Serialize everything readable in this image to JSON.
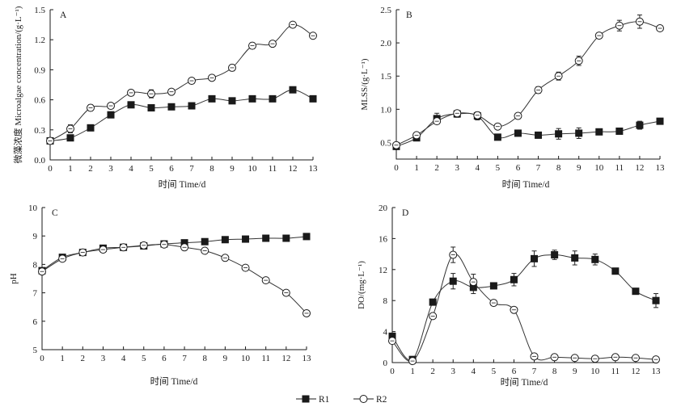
{
  "legend": {
    "r1": "R1",
    "r2": "R2"
  },
  "chart_data": [
    {
      "type": "line",
      "panel": "A",
      "xlabel": "时间 Time/d",
      "ylabel": "微藻浓度 Microalgae concentration/(g·L⁻¹)",
      "xlim": [
        0,
        13
      ],
      "ylim": [
        0,
        1.5
      ],
      "xticks": [
        0,
        1,
        2,
        3,
        4,
        5,
        6,
        7,
        8,
        9,
        10,
        11,
        12,
        13
      ],
      "yticks": [
        0,
        0.3,
        0.6,
        0.9,
        1.2,
        1.5
      ],
      "grid": false,
      "series": [
        {
          "name": "R1",
          "marker": "filled-square",
          "x": [
            0,
            1,
            2,
            3,
            4,
            5,
            6,
            7,
            8,
            9,
            10,
            11,
            12,
            13
          ],
          "y": [
            0.19,
            0.22,
            0.32,
            0.45,
            0.55,
            0.52,
            0.53,
            0.54,
            0.61,
            0.59,
            0.61,
            0.61,
            0.7,
            0.61
          ],
          "err": [
            0.01,
            0.01,
            0.01,
            0.01,
            0.01,
            0.02,
            0.01,
            0.01,
            0.01,
            0.01,
            0.01,
            0.01,
            0.01,
            0.01
          ]
        },
        {
          "name": "R2",
          "marker": "open-circle",
          "x": [
            0,
            1,
            2,
            3,
            4,
            5,
            6,
            7,
            8,
            9,
            10,
            11,
            12,
            13
          ],
          "y": [
            0.19,
            0.31,
            0.52,
            0.54,
            0.67,
            0.66,
            0.68,
            0.79,
            0.82,
            0.92,
            1.14,
            1.16,
            1.35,
            1.24
          ],
          "err": [
            0.01,
            0.04,
            0.03,
            0.02,
            0.02,
            0.04,
            0.02,
            0.02,
            0.02,
            0.03,
            0.03,
            0.02,
            0.02,
            0.02
          ]
        }
      ]
    },
    {
      "type": "line",
      "panel": "B",
      "xlabel": "时间 Time/d",
      "ylabel": "MLSS/(g·L⁻¹)",
      "xlim": [
        0,
        13
      ],
      "ylim": [
        0.25,
        2.5
      ],
      "xticks": [
        0,
        1,
        2,
        3,
        4,
        5,
        6,
        7,
        8,
        9,
        10,
        11,
        12,
        13
      ],
      "yticks": [
        0.5,
        1.0,
        1.5,
        2.0,
        2.5
      ],
      "grid": false,
      "series": [
        {
          "name": "R1",
          "marker": "filled-square",
          "x": [
            0,
            1,
            2,
            3,
            4,
            5,
            6,
            7,
            8,
            9,
            10,
            11,
            12,
            13
          ],
          "y": [
            0.44,
            0.57,
            0.86,
            0.93,
            0.9,
            0.58,
            0.64,
            0.61,
            0.63,
            0.64,
            0.66,
            0.67,
            0.76,
            0.82
          ],
          "err": [
            0.02,
            0.03,
            0.08,
            0.05,
            0.06,
            0.03,
            0.04,
            0.04,
            0.08,
            0.08,
            0.03,
            0.02,
            0.06,
            0.03
          ]
        },
        {
          "name": "R2",
          "marker": "open-circle",
          "x": [
            0,
            1,
            2,
            3,
            4,
            5,
            6,
            7,
            8,
            9,
            10,
            11,
            12,
            13
          ],
          "y": [
            0.46,
            0.61,
            0.82,
            0.94,
            0.91,
            0.74,
            0.9,
            1.29,
            1.5,
            1.73,
            2.11,
            2.26,
            2.32,
            2.22
          ],
          "err": [
            0.02,
            0.03,
            0.04,
            0.03,
            0.03,
            0.03,
            0.03,
            0.05,
            0.06,
            0.07,
            0.03,
            0.08,
            0.1,
            0.03
          ]
        }
      ]
    },
    {
      "type": "line",
      "panel": "C",
      "xlabel": "时间 Time/d",
      "ylabel": "pH",
      "xlim": [
        0,
        13
      ],
      "ylim": [
        5,
        10
      ],
      "xticks": [
        0,
        1,
        2,
        3,
        4,
        5,
        6,
        7,
        8,
        9,
        10,
        11,
        12,
        13
      ],
      "yticks": [
        5,
        6,
        7,
        8,
        9,
        10
      ],
      "grid": false,
      "series": [
        {
          "name": "R1",
          "marker": "filled-square",
          "x": [
            0,
            1,
            2,
            3,
            4,
            5,
            6,
            7,
            8,
            9,
            10,
            11,
            12,
            13
          ],
          "y": [
            7.78,
            8.25,
            8.42,
            8.57,
            8.6,
            8.65,
            8.72,
            8.76,
            8.8,
            8.87,
            8.89,
            8.92,
            8.92,
            8.98
          ],
          "err": [
            0.03,
            0.03,
            0.03,
            0.03,
            0.02,
            0.02,
            0.02,
            0.02,
            0.02,
            0.02,
            0.02,
            0.02,
            0.02,
            0.03
          ]
        },
        {
          "name": "R2",
          "marker": "open-circle",
          "x": [
            0,
            1,
            2,
            3,
            4,
            5,
            6,
            7,
            8,
            9,
            10,
            11,
            12,
            13
          ],
          "y": [
            7.75,
            8.2,
            8.42,
            8.52,
            8.6,
            8.67,
            8.7,
            8.6,
            8.48,
            8.23,
            7.88,
            7.44,
            7.0,
            6.28
          ],
          "err": [
            0.03,
            0.03,
            0.03,
            0.03,
            0.02,
            0.02,
            0.02,
            0.02,
            0.02,
            0.03,
            0.03,
            0.03,
            0.03,
            0.03
          ]
        }
      ]
    },
    {
      "type": "line",
      "panel": "D",
      "xlabel": "时间 Time/d",
      "ylabel": "DO/(mg·L⁻¹)",
      "xlim": [
        0,
        13
      ],
      "ylim": [
        0,
        20
      ],
      "xticks": [
        0,
        1,
        2,
        3,
        4,
        5,
        6,
        7,
        8,
        9,
        10,
        11,
        12,
        13
      ],
      "yticks": [
        0,
        4,
        8,
        12,
        16,
        20
      ],
      "grid": false,
      "series": [
        {
          "name": "R1",
          "marker": "filled-square",
          "x": [
            0,
            1,
            2,
            3,
            4,
            5,
            6,
            7,
            8,
            9,
            10,
            11,
            12,
            13
          ],
          "y": [
            3.4,
            0.4,
            7.8,
            10.5,
            9.7,
            9.9,
            10.7,
            13.4,
            13.9,
            13.5,
            13.3,
            11.8,
            9.2,
            8.0
          ],
          "err": [
            0.3,
            0.2,
            0.3,
            1.0,
            0.8,
            0.3,
            0.8,
            1.0,
            0.6,
            0.9,
            0.7,
            0.3,
            0.3,
            0.9
          ]
        },
        {
          "name": "R2",
          "marker": "open-circle",
          "x": [
            0,
            1,
            2,
            3,
            4,
            5,
            6,
            7,
            8,
            9,
            10,
            11,
            12,
            13
          ],
          "y": [
            2.8,
            0.2,
            6.0,
            13.9,
            10.4,
            7.7,
            6.8,
            0.8,
            0.7,
            0.6,
            0.5,
            0.7,
            0.6,
            0.4
          ],
          "err": [
            0.3,
            0.2,
            0.3,
            1.0,
            1.0,
            0.3,
            0.3,
            0.2,
            0.2,
            0.2,
            0.2,
            0.2,
            0.2,
            0.2
          ]
        }
      ]
    }
  ]
}
